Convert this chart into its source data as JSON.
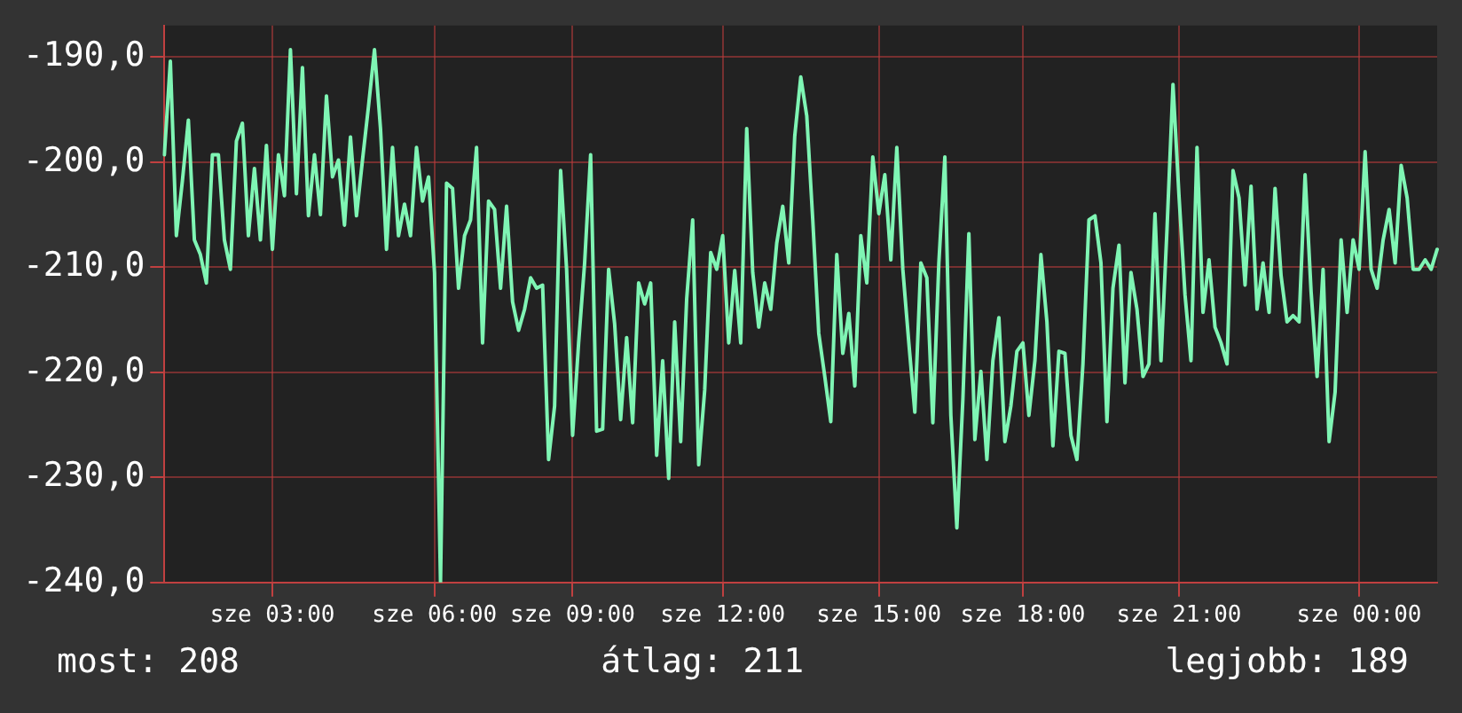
{
  "chart_data": {
    "type": "line",
    "categories": [
      null,
      null,
      null,
      null,
      null,
      null,
      null,
      null,
      null,
      null,
      null,
      null,
      null,
      null,
      null,
      null,
      null,
      null,
      "sze 03:00",
      null,
      null,
      null,
      null,
      null,
      null,
      null,
      null,
      null,
      null,
      null,
      null,
      null,
      null,
      null,
      null,
      null,
      null,
      null,
      null,
      null,
      null,
      null,
      null,
      null,
      null,
      "sze 06:00",
      null,
      null,
      null,
      null,
      null,
      null,
      null,
      null,
      null,
      null,
      null,
      null,
      null,
      null,
      null,
      null,
      null,
      null,
      null,
      null,
      null,
      null,
      "sze 09:00",
      null,
      null,
      null,
      null,
      null,
      null,
      null,
      null,
      null,
      null,
      null,
      null,
      null,
      null,
      null,
      null,
      null,
      null,
      null,
      null,
      null,
      null,
      null,
      null,
      "sze 12:00",
      null,
      null,
      null,
      null,
      null,
      null,
      null,
      null,
      null,
      null,
      null,
      null,
      null,
      null,
      null,
      null,
      null,
      null,
      null,
      null,
      null,
      null,
      null,
      null,
      null,
      "sze 15:00",
      null,
      null,
      null,
      null,
      null,
      null,
      null,
      null,
      null,
      null,
      null,
      null,
      null,
      null,
      null,
      null,
      null,
      null,
      null,
      null,
      null,
      null,
      null,
      "sze 18:00",
      null,
      null,
      null,
      null,
      null,
      null,
      null,
      null,
      null,
      null,
      null,
      null,
      null,
      null,
      null,
      null,
      null,
      null,
      null,
      null,
      null,
      null,
      null,
      null,
      null,
      "sze 21:00",
      null,
      null,
      null,
      null,
      null,
      null,
      null,
      null,
      null,
      null,
      null,
      null,
      null,
      null,
      null,
      null,
      null,
      null,
      null,
      null,
      null,
      null,
      null,
      null,
      null,
      null,
      null,
      null,
      null,
      "sze 00:00",
      null,
      null,
      null,
      null,
      null,
      null,
      null,
      null,
      null,
      null,
      null,
      null,
      null
    ],
    "series": [
      {
        "color": "#7ff5b4",
        "values": [
          -199.3,
          -190.4,
          -207,
          -201.8,
          -196,
          -207.4,
          -208.8,
          -211.5,
          -199.3,
          -199.3,
          -207.4,
          -210.2,
          -198,
          -196.3,
          -207,
          -200.6,
          -207.4,
          -198.4,
          -208.3,
          -199.3,
          -203.2,
          -189.3,
          -203,
          -191,
          -205.1,
          -199.3,
          -205,
          -193.7,
          -201.4,
          -199.8,
          -206,
          -197.6,
          -205.1,
          -199.8,
          -194.7,
          -189.3,
          -196.8,
          -208.3,
          -198.6,
          -207,
          -204,
          -207,
          -198.6,
          -203.7,
          -201.4,
          -210.5,
          -240,
          -202,
          -202.5,
          -212,
          -207,
          -205.5,
          -198.6,
          -217.2,
          -203.7,
          -204.5,
          -212,
          -204.2,
          -213.3,
          -216,
          -214,
          -211,
          -212,
          -211.7,
          -228.3,
          -223.2,
          -200.8,
          -210.2,
          -226,
          -217.2,
          -209.6,
          -199.3,
          -225.6,
          -225.4,
          -210.2,
          -215.4,
          -224.5,
          -216.7,
          -224.8,
          -211.5,
          -213.5,
          -211.5,
          -227.9,
          -218.9,
          -230.1,
          -215.2,
          -226.6,
          -213,
          -205.5,
          -228.8,
          -221.7,
          -208.6,
          -210.2,
          -207,
          -217.2,
          -210.3,
          -217.2,
          -196.8,
          -210.5,
          -215.7,
          -211.5,
          -214,
          -207.7,
          -204.2,
          -209.6,
          -197.5,
          -191.9,
          -195.6,
          -205.5,
          -216.3,
          -220.4,
          -224.7,
          -208.8,
          -218.2,
          -214.4,
          -221.3,
          -207,
          -211.5,
          -199.5,
          -204.9,
          -201.2,
          -209.3,
          -198.6,
          -210.2,
          -217.2,
          -223.8,
          -209.6,
          -211,
          -224.8,
          -209.6,
          -199.5,
          -224.1,
          -234.8,
          -222.6,
          -206.8,
          -226.4,
          -219.9,
          -228.3,
          -218.9,
          -214.8,
          -226.6,
          -223.2,
          -218,
          -217.2,
          -224.1,
          -218.9,
          -208.8,
          -215.2,
          -227,
          -218,
          -218.2,
          -226,
          -228.3,
          -219.2,
          -205.5,
          -205.1,
          -209.6,
          -224.7,
          -212,
          -207.9,
          -221,
          -210.5,
          -214,
          -220.4,
          -219.2,
          -204.9,
          -218.9,
          -206.4,
          -192.6,
          -203.2,
          -212.6,
          -218.9,
          -198.6,
          -214.3,
          -209.3,
          -215.7,
          -217.2,
          -219.2,
          -200.8,
          -203.4,
          -211.7,
          -202.3,
          -214,
          -209.6,
          -214.3,
          -202.5,
          -210.8,
          -215.2,
          -214.6,
          -215.2,
          -201.2,
          -212.3,
          -220.4,
          -210.2,
          -226.6,
          -221.9,
          -207.4,
          -214.3,
          -207.4,
          -210.2,
          -199,
          -210.2,
          -212,
          -207.4,
          -204.5,
          -209.6,
          -200.3,
          -203.4,
          -210.2,
          -210.2,
          -209.3,
          -210.2,
          -208.3
        ]
      }
    ],
    "ylim": [
      -240,
      -187
    ],
    "yticks": [
      {
        "value": -240,
        "label": "-240,0"
      },
      {
        "value": -230,
        "label": "-230,0"
      },
      {
        "value": -220,
        "label": "-220,0"
      },
      {
        "value": -210,
        "label": "-210,0"
      },
      {
        "value": -200,
        "label": "-200,0"
      },
      {
        "value": -190,
        "label": "-190,0"
      }
    ],
    "grid": true,
    "marker": "none",
    "line_style": "solid",
    "annotations": [
      "most: 208",
      "átlag: 211",
      "legjobb: 189"
    ]
  }
}
